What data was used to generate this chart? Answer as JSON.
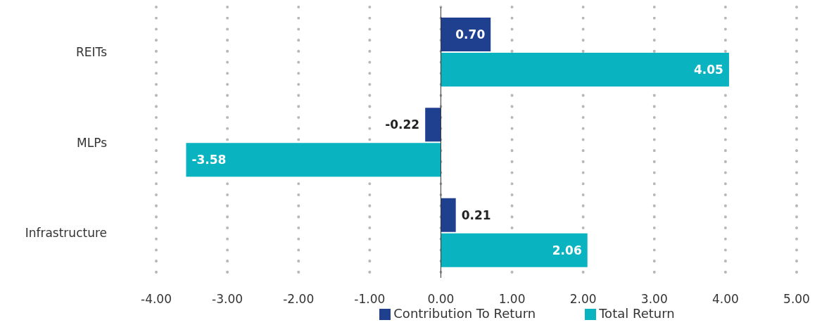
{
  "chart_data": {
    "type": "bar",
    "orientation": "horizontal",
    "categories": [
      "REITs",
      "MLPs",
      "Infrastructure"
    ],
    "series": [
      {
        "name": "Contribution To Return",
        "color": "#1f3f8f",
        "values": [
          0.7,
          -0.22,
          0.21
        ],
        "value_labels": [
          "0.70",
          "-0.22",
          "0.21"
        ]
      },
      {
        "name": "Total Return",
        "color": "#0ab3c0",
        "values": [
          4.05,
          -3.58,
          2.06
        ],
        "value_labels": [
          "4.05",
          "-3.58",
          "2.06"
        ]
      }
    ],
    "xlim": [
      -4,
      5
    ],
    "xticks": [
      {
        "value": -4,
        "label": "-4.00"
      },
      {
        "value": -3,
        "label": "-3.00"
      },
      {
        "value": -2,
        "label": "-2.00"
      },
      {
        "value": -1,
        "label": "-1.00"
      },
      {
        "value": 0,
        "label": "0.00"
      },
      {
        "value": 1,
        "label": "1.00"
      },
      {
        "value": 2,
        "label": "2.00"
      },
      {
        "value": 3,
        "label": "3.00"
      },
      {
        "value": 4,
        "label": "4.00"
      },
      {
        "value": 5,
        "label": "5.00"
      }
    ],
    "grid": "x",
    "legend": "bottom"
  }
}
